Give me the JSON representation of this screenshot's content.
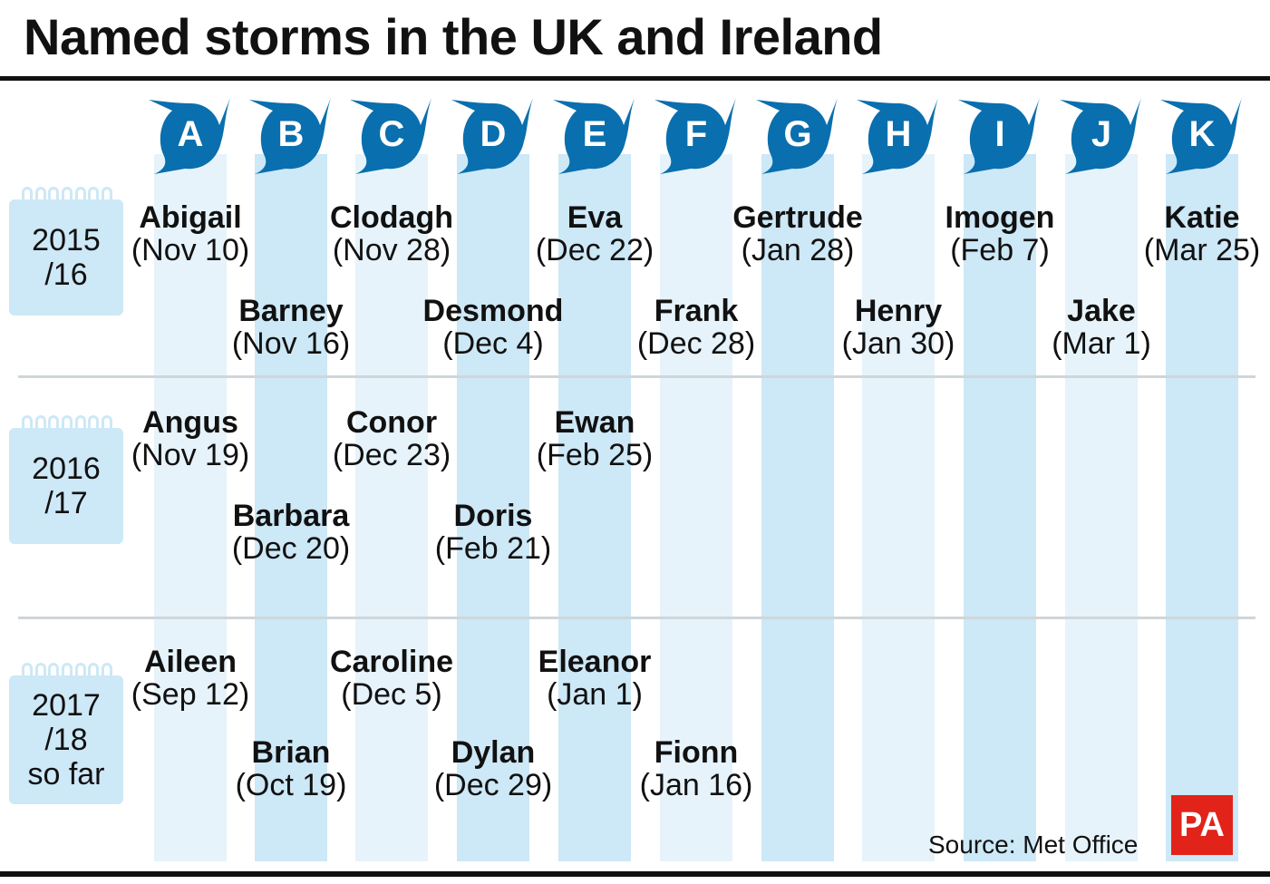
{
  "title": "Named storms in the UK and Ireland",
  "letters": [
    "A",
    "B",
    "C",
    "D",
    "E",
    "F",
    "G",
    "H",
    "I",
    "J",
    "K"
  ],
  "seasons": [
    {
      "label": "2015\n/16",
      "storms": [
        {
          "name": "Abigail",
          "date": "(Nov 10)"
        },
        {
          "name": "Barney",
          "date": "(Nov 16)"
        },
        {
          "name": "Clodagh",
          "date": "(Nov 28)"
        },
        {
          "name": "Desmond",
          "date": "(Dec 4)"
        },
        {
          "name": "Eva",
          "date": "(Dec 22)"
        },
        {
          "name": "Frank",
          "date": "(Dec 28)"
        },
        {
          "name": "Gertrude",
          "date": "(Jan 28)"
        },
        {
          "name": "Henry",
          "date": "(Jan 30)"
        },
        {
          "name": "Imogen",
          "date": "(Feb 7)"
        },
        {
          "name": "Jake",
          "date": "(Mar 1)"
        },
        {
          "name": "Katie",
          "date": "(Mar 25)"
        }
      ]
    },
    {
      "label": "2016\n/17",
      "storms": [
        {
          "name": "Angus",
          "date": "(Nov 19)"
        },
        {
          "name": "Barbara",
          "date": "(Dec 20)"
        },
        {
          "name": "Conor",
          "date": "(Dec 23)"
        },
        {
          "name": "Doris",
          "date": "(Feb 21)"
        },
        {
          "name": "Ewan",
          "date": "(Feb 25)"
        }
      ]
    },
    {
      "label": "2017\n/18\nso far",
      "storms": [
        {
          "name": "Aileen",
          "date": "(Sep 12)"
        },
        {
          "name": "Brian",
          "date": "(Oct 19)"
        },
        {
          "name": "Caroline",
          "date": "(Dec 5)"
        },
        {
          "name": "Dylan",
          "date": "(Dec 29)"
        },
        {
          "name": "Eleanor",
          "date": "(Jan 1)"
        },
        {
          "name": "Fionn",
          "date": "(Jan 16)"
        }
      ]
    }
  ],
  "source": "Source: Met Office",
  "logo": "PA",
  "colors": {
    "icon": "#0a6fae",
    "stripe_light": "#e6f3fa",
    "stripe_dark": "#cde8f6",
    "logo_bg": "#e2231a"
  }
}
